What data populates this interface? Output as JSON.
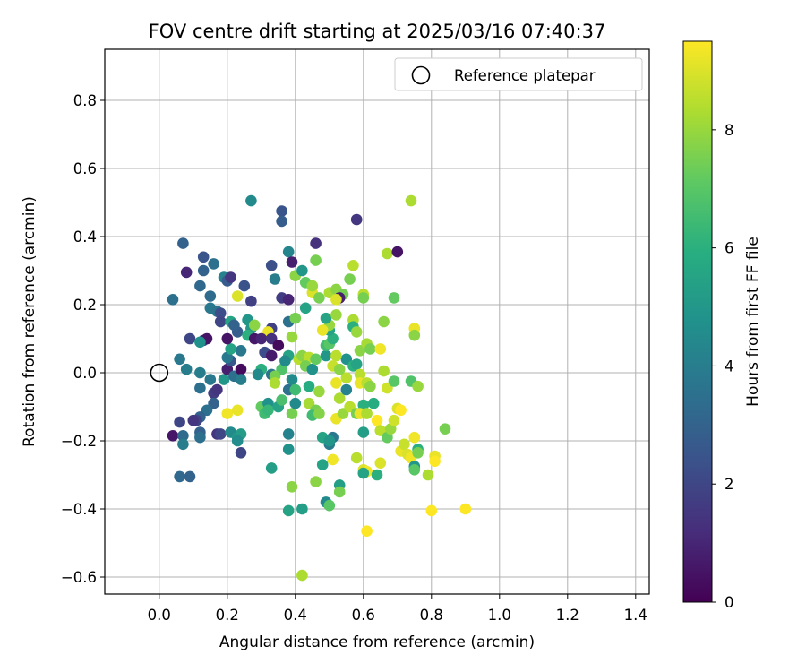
{
  "chart_data": {
    "type": "scatter",
    "title": "FOV centre drift starting at 2025/03/16 07:40:37",
    "xlabel": "Angular distance from reference (arcmin)",
    "ylabel": "Rotation from reference (arcmin)",
    "xlim": [
      -0.16,
      1.44
    ],
    "ylim": [
      -0.65,
      0.95
    ],
    "xticks": [
      0.0,
      0.2,
      0.4,
      0.6,
      0.8,
      1.0,
      1.2,
      1.4
    ],
    "xtick_labels": [
      "0.0",
      "0.2",
      "0.4",
      "0.6",
      "0.8",
      "1.0",
      "1.2",
      "1.4"
    ],
    "yticks": [
      -0.6,
      -0.4,
      -0.2,
      0.0,
      0.2,
      0.4,
      0.6,
      0.8
    ],
    "ytick_labels": [
      "−0.6",
      "−0.4",
      "−0.2",
      "0.0",
      "0.2",
      "0.4",
      "0.6",
      "0.8"
    ],
    "grid": true,
    "legend": {
      "location": "top-right",
      "entries": [
        "Reference platepar"
      ]
    },
    "reference_point": {
      "x": 0.0,
      "y": 0.0,
      "marker": "open-circle"
    },
    "colorbar": {
      "label": "Hours from first FF file",
      "colormap": "viridis",
      "range": [
        0,
        9.5
      ],
      "ticks": [
        0,
        2,
        4,
        6,
        8
      ],
      "tick_labels": [
        "0",
        "2",
        "4",
        "6",
        "8"
      ]
    },
    "points": [
      {
        "x": 0.04,
        "y": 0.215,
        "h": 3.5
      },
      {
        "x": 0.07,
        "y": 0.38,
        "h": 3.0
      },
      {
        "x": 0.08,
        "y": 0.295,
        "h": 1.0
      },
      {
        "x": 0.06,
        "y": 0.04,
        "h": 3.8
      },
      {
        "x": 0.09,
        "y": 0.1,
        "h": 2.0
      },
      {
        "x": 0.08,
        "y": 0.01,
        "h": 4.0
      },
      {
        "x": 0.12,
        "y": 0.255,
        "h": 3.2
      },
      {
        "x": 0.13,
        "y": 0.34,
        "h": 2.5
      },
      {
        "x": 0.13,
        "y": 0.3,
        "h": 3.0
      },
      {
        "x": 0.16,
        "y": 0.32,
        "h": 3.5
      },
      {
        "x": 0.15,
        "y": 0.225,
        "h": 3.3
      },
      {
        "x": 0.15,
        "y": 0.19,
        "h": 3.8
      },
      {
        "x": 0.17,
        "y": 0.18,
        "h": 3.6
      },
      {
        "x": 0.18,
        "y": 0.175,
        "h": 2.2
      },
      {
        "x": 0.18,
        "y": 0.15,
        "h": 2.0
      },
      {
        "x": 0.19,
        "y": 0.28,
        "h": 4.2
      },
      {
        "x": 0.2,
        "y": 0.27,
        "h": 2.7
      },
      {
        "x": 0.21,
        "y": 0.28,
        "h": 1.5
      },
      {
        "x": 0.13,
        "y": 0.095,
        "h": 2.0
      },
      {
        "x": 0.14,
        "y": 0.1,
        "h": 0.5
      },
      {
        "x": 0.12,
        "y": 0.09,
        "h": 4.8
      },
      {
        "x": 0.12,
        "y": 0.0,
        "h": 4.0
      },
      {
        "x": 0.12,
        "y": -0.045,
        "h": 3.5
      },
      {
        "x": 0.15,
        "y": -0.02,
        "h": 3.8
      },
      {
        "x": 0.16,
        "y": -0.06,
        "h": 1.7
      },
      {
        "x": 0.17,
        "y": -0.05,
        "h": 1.4
      },
      {
        "x": 0.16,
        "y": -0.09,
        "h": 3.0
      },
      {
        "x": 0.14,
        "y": -0.11,
        "h": 3.5
      },
      {
        "x": 0.12,
        "y": -0.13,
        "h": 3.0
      },
      {
        "x": 0.11,
        "y": -0.14,
        "h": 2.0
      },
      {
        "x": 0.1,
        "y": -0.14,
        "h": 1.5
      },
      {
        "x": 0.04,
        "y": -0.185,
        "h": 0.6
      },
      {
        "x": 0.06,
        "y": -0.145,
        "h": 2.0
      },
      {
        "x": 0.07,
        "y": -0.185,
        "h": 3.3
      },
      {
        "x": 0.07,
        "y": -0.21,
        "h": 4.0
      },
      {
        "x": 0.12,
        "y": -0.175,
        "h": 3.0
      },
      {
        "x": 0.12,
        "y": -0.19,
        "h": 3.5
      },
      {
        "x": 0.06,
        "y": -0.305,
        "h": 3.2
      },
      {
        "x": 0.09,
        "y": -0.305,
        "h": 3.0
      },
      {
        "x": 0.17,
        "y": -0.18,
        "h": 1.5
      },
      {
        "x": 0.18,
        "y": -0.18,
        "h": 2.0
      },
      {
        "x": 0.21,
        "y": -0.175,
        "h": 4.5
      },
      {
        "x": 0.23,
        "y": -0.19,
        "h": 5.0
      },
      {
        "x": 0.24,
        "y": -0.18,
        "h": 5.2
      },
      {
        "x": 0.23,
        "y": -0.2,
        "h": 4.6
      },
      {
        "x": 0.24,
        "y": -0.235,
        "h": 2.0
      },
      {
        "x": 0.2,
        "y": -0.12,
        "h": 9.3
      },
      {
        "x": 0.23,
        "y": -0.11,
        "h": 9.2
      },
      {
        "x": 0.19,
        "y": -0.02,
        "h": 5.0
      },
      {
        "x": 0.2,
        "y": 0.01,
        "h": 0.8
      },
      {
        "x": 0.21,
        "y": 0.035,
        "h": 2.6
      },
      {
        "x": 0.2,
        "y": 0.045,
        "h": 3.8
      },
      {
        "x": 0.22,
        "y": -0.01,
        "h": 3.5
      },
      {
        "x": 0.24,
        "y": 0.01,
        "h": 0.3
      },
      {
        "x": 0.24,
        "y": 0.065,
        "h": 3.8
      },
      {
        "x": 0.24,
        "y": -0.02,
        "h": 4.0
      },
      {
        "x": 0.21,
        "y": 0.07,
        "h": 5.5
      },
      {
        "x": 0.23,
        "y": 0.12,
        "h": 2.8
      },
      {
        "x": 0.21,
        "y": 0.15,
        "h": 5.5
      },
      {
        "x": 0.2,
        "y": 0.1,
        "h": 0.5
      },
      {
        "x": 0.22,
        "y": 0.14,
        "h": 3.0
      },
      {
        "x": 0.23,
        "y": 0.225,
        "h": 9.0
      },
      {
        "x": 0.25,
        "y": 0.255,
        "h": 2.4
      },
      {
        "x": 0.27,
        "y": 0.21,
        "h": 1.8
      },
      {
        "x": 0.26,
        "y": 0.155,
        "h": 5.0
      },
      {
        "x": 0.27,
        "y": 0.13,
        "h": 5.0
      },
      {
        "x": 0.28,
        "y": 0.14,
        "h": 7.8
      },
      {
        "x": 0.26,
        "y": 0.11,
        "h": 6.0
      },
      {
        "x": 0.28,
        "y": 0.1,
        "h": 0.6
      },
      {
        "x": 0.27,
        "y": 0.505,
        "h": 4.5
      },
      {
        "x": 0.36,
        "y": 0.475,
        "h": 2.5
      },
      {
        "x": 0.36,
        "y": 0.445,
        "h": 2.8
      },
      {
        "x": 0.33,
        "y": 0.315,
        "h": 2.3
      },
      {
        "x": 0.38,
        "y": 0.355,
        "h": 4.3
      },
      {
        "x": 0.39,
        "y": 0.325,
        "h": 0.8
      },
      {
        "x": 0.34,
        "y": 0.275,
        "h": 4.0
      },
      {
        "x": 0.36,
        "y": 0.22,
        "h": 1.7
      },
      {
        "x": 0.38,
        "y": 0.215,
        "h": 1.0
      },
      {
        "x": 0.38,
        "y": 0.15,
        "h": 3.5
      },
      {
        "x": 0.33,
        "y": 0.13,
        "h": 1.8
      },
      {
        "x": 0.32,
        "y": 0.12,
        "h": 9.2
      },
      {
        "x": 0.3,
        "y": 0.1,
        "h": 1.0
      },
      {
        "x": 0.33,
        "y": 0.1,
        "h": 1.3
      },
      {
        "x": 0.31,
        "y": 0.06,
        "h": 2.2
      },
      {
        "x": 0.33,
        "y": 0.05,
        "h": 0.7
      },
      {
        "x": 0.35,
        "y": 0.08,
        "h": 0.3
      },
      {
        "x": 0.3,
        "y": 0.01,
        "h": 6.0
      },
      {
        "x": 0.29,
        "y": -0.005,
        "h": 4.5
      },
      {
        "x": 0.33,
        "y": -0.005,
        "h": 3.6
      },
      {
        "x": 0.36,
        "y": 0.01,
        "h": 6.8
      },
      {
        "x": 0.34,
        "y": -0.01,
        "h": 7.5
      },
      {
        "x": 0.38,
        "y": 0.05,
        "h": 5.5
      },
      {
        "x": 0.37,
        "y": 0.035,
        "h": 4.5
      },
      {
        "x": 0.34,
        "y": -0.03,
        "h": 8.3
      },
      {
        "x": 0.3,
        "y": -0.1,
        "h": 7.2
      },
      {
        "x": 0.32,
        "y": -0.09,
        "h": 4.8
      },
      {
        "x": 0.31,
        "y": -0.12,
        "h": 6.5
      },
      {
        "x": 0.32,
        "y": -0.11,
        "h": 6.3
      },
      {
        "x": 0.35,
        "y": -0.1,
        "h": 5.5
      },
      {
        "x": 0.36,
        "y": -0.08,
        "h": 6.7
      },
      {
        "x": 0.38,
        "y": -0.05,
        "h": 3.5
      },
      {
        "x": 0.39,
        "y": -0.02,
        "h": 4.5
      },
      {
        "x": 0.4,
        "y": -0.05,
        "h": 6.5
      },
      {
        "x": 0.39,
        "y": -0.12,
        "h": 7.5
      },
      {
        "x": 0.4,
        "y": -0.09,
        "h": 4.5
      },
      {
        "x": 0.38,
        "y": -0.18,
        "h": 4.2
      },
      {
        "x": 0.38,
        "y": -0.225,
        "h": 4.8
      },
      {
        "x": 0.33,
        "y": -0.28,
        "h": 5.3
      },
      {
        "x": 0.39,
        "y": -0.335,
        "h": 7.8
      },
      {
        "x": 0.38,
        "y": -0.405,
        "h": 5.5
      },
      {
        "x": 0.42,
        "y": -0.4,
        "h": 5.3
      },
      {
        "x": 0.42,
        "y": -0.595,
        "h": 8.3
      },
      {
        "x": 0.4,
        "y": 0.285,
        "h": 7.8
      },
      {
        "x": 0.42,
        "y": 0.3,
        "h": 5.0
      },
      {
        "x": 0.46,
        "y": 0.33,
        "h": 7.5
      },
      {
        "x": 0.46,
        "y": 0.38,
        "h": 1.3
      },
      {
        "x": 0.43,
        "y": 0.265,
        "h": 7.2
      },
      {
        "x": 0.45,
        "y": 0.235,
        "h": 9.0
      },
      {
        "x": 0.45,
        "y": 0.255,
        "h": 8.0
      },
      {
        "x": 0.47,
        "y": 0.22,
        "h": 7.5
      },
      {
        "x": 0.43,
        "y": 0.19,
        "h": 5.5
      },
      {
        "x": 0.4,
        "y": 0.16,
        "h": 7.5
      },
      {
        "x": 0.39,
        "y": 0.105,
        "h": 8.0
      },
      {
        "x": 0.41,
        "y": 0.04,
        "h": 8.5
      },
      {
        "x": 0.42,
        "y": 0.05,
        "h": 7.8
      },
      {
        "x": 0.44,
        "y": 0.045,
        "h": 8.5
      },
      {
        "x": 0.43,
        "y": 0.02,
        "h": 7.5
      },
      {
        "x": 0.45,
        "y": 0.01,
        "h": 4.8
      },
      {
        "x": 0.46,
        "y": 0.04,
        "h": 7.2
      },
      {
        "x": 0.44,
        "y": -0.04,
        "h": 5.8
      },
      {
        "x": 0.47,
        "y": -0.055,
        "h": 8.0
      },
      {
        "x": 0.44,
        "y": -0.09,
        "h": 8.2
      },
      {
        "x": 0.46,
        "y": -0.11,
        "h": 7.5
      },
      {
        "x": 0.45,
        "y": -0.125,
        "h": 6.5
      },
      {
        "x": 0.47,
        "y": -0.12,
        "h": 7.7
      },
      {
        "x": 0.48,
        "y": -0.19,
        "h": 5.5
      },
      {
        "x": 0.48,
        "y": -0.27,
        "h": 5.5
      },
      {
        "x": 0.46,
        "y": -0.32,
        "h": 7.8
      },
      {
        "x": 0.49,
        "y": -0.38,
        "h": 4.5
      },
      {
        "x": 0.5,
        "y": -0.39,
        "h": 7.0
      },
      {
        "x": 0.5,
        "y": -0.21,
        "h": 4.0
      },
      {
        "x": 0.51,
        "y": -0.19,
        "h": 3.8
      },
      {
        "x": 0.5,
        "y": -0.2,
        "h": 5.0
      },
      {
        "x": 0.51,
        "y": -0.255,
        "h": 9.3
      },
      {
        "x": 0.53,
        "y": -0.33,
        "h": 5.3
      },
      {
        "x": 0.53,
        "y": -0.35,
        "h": 7.5
      },
      {
        "x": 0.52,
        "y": -0.135,
        "h": 9.2
      },
      {
        "x": 0.54,
        "y": -0.12,
        "h": 8.0
      },
      {
        "x": 0.53,
        "y": -0.075,
        "h": 8.3
      },
      {
        "x": 0.55,
        "y": -0.05,
        "h": 4.2
      },
      {
        "x": 0.56,
        "y": -0.1,
        "h": 8.5
      },
      {
        "x": 0.52,
        "y": -0.03,
        "h": 9.2
      },
      {
        "x": 0.55,
        "y": -0.015,
        "h": 8.5
      },
      {
        "x": 0.49,
        "y": 0.05,
        "h": 5.0
      },
      {
        "x": 0.49,
        "y": 0.08,
        "h": 6.5
      },
      {
        "x": 0.5,
        "y": 0.085,
        "h": 7.0
      },
      {
        "x": 0.51,
        "y": 0.1,
        "h": 6.0
      },
      {
        "x": 0.5,
        "y": 0.125,
        "h": 5.5
      },
      {
        "x": 0.5,
        "y": 0.14,
        "h": 8.0
      },
      {
        "x": 0.48,
        "y": 0.125,
        "h": 9.2
      },
      {
        "x": 0.49,
        "y": 0.16,
        "h": 5.5
      },
      {
        "x": 0.52,
        "y": 0.17,
        "h": 8.0
      },
      {
        "x": 0.5,
        "y": 0.235,
        "h": 8.3
      },
      {
        "x": 0.52,
        "y": 0.245,
        "h": 7.8
      },
      {
        "x": 0.54,
        "y": 0.23,
        "h": 7.5
      },
      {
        "x": 0.53,
        "y": 0.22,
        "h": 0.8
      },
      {
        "x": 0.52,
        "y": 0.215,
        "h": 9.0
      },
      {
        "x": 0.56,
        "y": 0.275,
        "h": 7.5
      },
      {
        "x": 0.57,
        "y": 0.315,
        "h": 8.5
      },
      {
        "x": 0.58,
        "y": 0.45,
        "h": 1.5
      },
      {
        "x": 0.6,
        "y": 0.23,
        "h": 8.5
      },
      {
        "x": 0.6,
        "y": 0.22,
        "h": 7.5
      },
      {
        "x": 0.57,
        "y": 0.155,
        "h": 8.3
      },
      {
        "x": 0.57,
        "y": 0.135,
        "h": 6.0
      },
      {
        "x": 0.58,
        "y": 0.12,
        "h": 8.0
      },
      {
        "x": 0.59,
        "y": 0.065,
        "h": 7.8
      },
      {
        "x": 0.61,
        "y": 0.085,
        "h": 8.2
      },
      {
        "x": 0.62,
        "y": 0.07,
        "h": 7.5
      },
      {
        "x": 0.55,
        "y": 0.04,
        "h": 4.8
      },
      {
        "x": 0.52,
        "y": 0.05,
        "h": 8.5
      },
      {
        "x": 0.51,
        "y": 0.02,
        "h": 8.7
      },
      {
        "x": 0.53,
        "y": 0.01,
        "h": 7.8
      },
      {
        "x": 0.57,
        "y": 0.02,
        "h": 6.0
      },
      {
        "x": 0.58,
        "y": 0.025,
        "h": 5.5
      },
      {
        "x": 0.59,
        "y": -0.005,
        "h": 8.5
      },
      {
        "x": 0.59,
        "y": -0.03,
        "h": 9.2
      },
      {
        "x": 0.61,
        "y": -0.03,
        "h": 8.5
      },
      {
        "x": 0.62,
        "y": -0.04,
        "h": 7.8
      },
      {
        "x": 0.6,
        "y": -0.095,
        "h": 6.0
      },
      {
        "x": 0.58,
        "y": -0.12,
        "h": 7.5
      },
      {
        "x": 0.59,
        "y": -0.12,
        "h": 9.2
      },
      {
        "x": 0.61,
        "y": -0.12,
        "h": 8.3
      },
      {
        "x": 0.63,
        "y": -0.09,
        "h": 5.8
      },
      {
        "x": 0.6,
        "y": -0.175,
        "h": 5.3
      },
      {
        "x": 0.58,
        "y": -0.25,
        "h": 8.5
      },
      {
        "x": 0.6,
        "y": -0.285,
        "h": 9.0
      },
      {
        "x": 0.61,
        "y": -0.29,
        "h": 9.3
      },
      {
        "x": 0.6,
        "y": -0.295,
        "h": 5.5
      },
      {
        "x": 0.64,
        "y": -0.3,
        "h": 6.0
      },
      {
        "x": 0.65,
        "y": -0.265,
        "h": 9.0
      },
      {
        "x": 0.61,
        "y": -0.465,
        "h": 9.5
      },
      {
        "x": 0.64,
        "y": -0.14,
        "h": 9.5
      },
      {
        "x": 0.65,
        "y": -0.17,
        "h": 8.5
      },
      {
        "x": 0.67,
        "y": -0.19,
        "h": 7.2
      },
      {
        "x": 0.68,
        "y": -0.165,
        "h": 8.0
      },
      {
        "x": 0.69,
        "y": -0.14,
        "h": 8.8
      },
      {
        "x": 0.7,
        "y": -0.105,
        "h": 9.0
      },
      {
        "x": 0.71,
        "y": -0.11,
        "h": 9.5
      },
      {
        "x": 0.67,
        "y": -0.045,
        "h": 8.8
      },
      {
        "x": 0.69,
        "y": -0.025,
        "h": 7.0
      },
      {
        "x": 0.66,
        "y": 0.005,
        "h": 8.3
      },
      {
        "x": 0.65,
        "y": 0.07,
        "h": 9.3
      },
      {
        "x": 0.66,
        "y": 0.15,
        "h": 7.8
      },
      {
        "x": 0.69,
        "y": 0.22,
        "h": 7.2
      },
      {
        "x": 0.67,
        "y": 0.35,
        "h": 8.3
      },
      {
        "x": 0.7,
        "y": 0.355,
        "h": 0.5
      },
      {
        "x": 0.74,
        "y": 0.505,
        "h": 8.3
      },
      {
        "x": 0.75,
        "y": 0.13,
        "h": 9.2
      },
      {
        "x": 0.75,
        "y": 0.11,
        "h": 7.8
      },
      {
        "x": 0.74,
        "y": -0.025,
        "h": 6.8
      },
      {
        "x": 0.76,
        "y": -0.04,
        "h": 8.0
      },
      {
        "x": 0.71,
        "y": -0.23,
        "h": 9.2
      },
      {
        "x": 0.72,
        "y": -0.21,
        "h": 8.7
      },
      {
        "x": 0.73,
        "y": -0.24,
        "h": 9.0
      },
      {
        "x": 0.74,
        "y": -0.25,
        "h": 9.3
      },
      {
        "x": 0.75,
        "y": -0.19,
        "h": 9.3
      },
      {
        "x": 0.76,
        "y": -0.225,
        "h": 6.0
      },
      {
        "x": 0.76,
        "y": -0.235,
        "h": 7.5
      },
      {
        "x": 0.75,
        "y": -0.275,
        "h": 5.0
      },
      {
        "x": 0.75,
        "y": -0.285,
        "h": 7.0
      },
      {
        "x": 0.79,
        "y": -0.3,
        "h": 8.3
      },
      {
        "x": 0.8,
        "y": -0.405,
        "h": 9.5
      },
      {
        "x": 0.81,
        "y": -0.245,
        "h": 9.2
      },
      {
        "x": 0.81,
        "y": -0.26,
        "h": 9.5
      },
      {
        "x": 0.84,
        "y": -0.165,
        "h": 7.5
      },
      {
        "x": 0.9,
        "y": -0.4,
        "h": 9.5
      }
    ]
  }
}
